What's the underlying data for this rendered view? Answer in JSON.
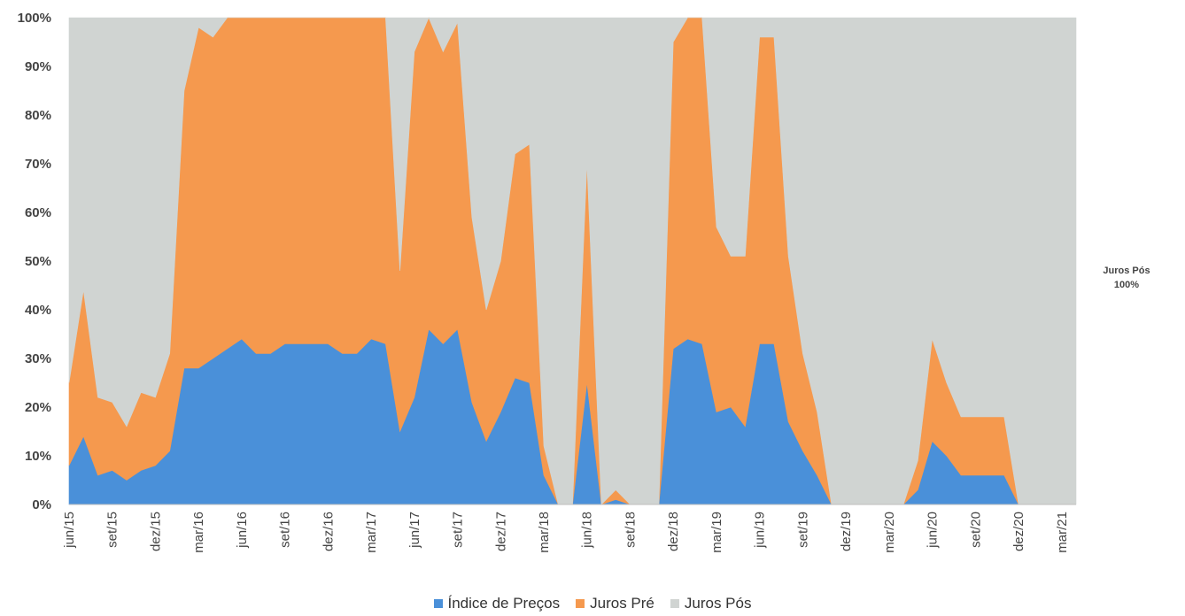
{
  "chart_data": {
    "type": "area",
    "stacked": true,
    "percent": true,
    "title": "",
    "xlabel": "",
    "ylabel": "",
    "ylim": [
      0,
      100
    ],
    "yticks": [
      "0%",
      "10%",
      "20%",
      "30%",
      "40%",
      "50%",
      "60%",
      "70%",
      "80%",
      "90%",
      "100%"
    ],
    "x_tick_labels": [
      "jun/15",
      "set/15",
      "dez/15",
      "mar/16",
      "jun/16",
      "set/16",
      "dez/16",
      "mar/17",
      "jun/17",
      "set/17",
      "dez/17",
      "mar/18",
      "jun/18",
      "set/18",
      "dez/18",
      "mar/19",
      "jun/19",
      "set/19",
      "dez/19",
      "mar/20",
      "jun/20",
      "set/20",
      "dez/20",
      "mar/21"
    ],
    "x": [
      "jun/15",
      "jul/15",
      "ago/15",
      "set/15",
      "out/15",
      "nov/15",
      "dez/15",
      "jan/16",
      "fev/16",
      "mar/16",
      "abr/16",
      "mai/16",
      "jun/16",
      "jul/16",
      "ago/16",
      "set/16",
      "out/16",
      "nov/16",
      "dez/16",
      "jan/17",
      "fev/17",
      "mar/17",
      "abr/17",
      "mai/17",
      "jun/17",
      "jul/17",
      "ago/17",
      "set/17",
      "out/17",
      "nov/17",
      "dez/17",
      "jan/18",
      "fev/18",
      "mar/18",
      "abr/18",
      "mai/18",
      "jun/18",
      "jul/18",
      "ago/18",
      "set/18",
      "out/18",
      "nov/18",
      "dez/18",
      "jan/19",
      "fev/19",
      "mar/19",
      "abr/19",
      "mai/19",
      "jun/19",
      "jul/19",
      "ago/19",
      "set/19",
      "out/19",
      "nov/19",
      "dez/19",
      "jan/20",
      "fev/20",
      "mar/20",
      "abr/20",
      "mai/20",
      "jun/20",
      "jul/20",
      "ago/20",
      "set/20",
      "out/20",
      "nov/20",
      "dez/20",
      "jan/21",
      "fev/21",
      "mar/21",
      "abr/21"
    ],
    "series": [
      {
        "name": "Índice de Preços",
        "color": "#4a90d9",
        "values": [
          8,
          14,
          6,
          7,
          5,
          7,
          8,
          11,
          28,
          28,
          30,
          32,
          34,
          31,
          31,
          33,
          33,
          33,
          33,
          31,
          31,
          34,
          33,
          15,
          22,
          36,
          33,
          36,
          21,
          13,
          19,
          26,
          25,
          6,
          0,
          0,
          25,
          0,
          1,
          0,
          0,
          0,
          32,
          34,
          33,
          19,
          20,
          16,
          33,
          33,
          17,
          11,
          6,
          0,
          0,
          0,
          0,
          0,
          0,
          3,
          13,
          10,
          6,
          6,
          6,
          6,
          0,
          0,
          0,
          0,
          0
        ]
      },
      {
        "name": "Juros Pré",
        "color": "#f5994e",
        "values": [
          17,
          30,
          16,
          14,
          11,
          16,
          14,
          20,
          57,
          70,
          66,
          68,
          66,
          69,
          69,
          67,
          67,
          67,
          67,
          69,
          69,
          66,
          67,
          33,
          71,
          64,
          60,
          63,
          38,
          27,
          31,
          46,
          49,
          6,
          0,
          0,
          45,
          0,
          2,
          0,
          0,
          0,
          63,
          66,
          67,
          38,
          31,
          35,
          63,
          63,
          34,
          20,
          13,
          0,
          0,
          0,
          0,
          0,
          0,
          6,
          21,
          15,
          12,
          12,
          12,
          12,
          0,
          0,
          0,
          0,
          0
        ]
      },
      {
        "name": "Juros Pós",
        "color": "#d0d4d2",
        "values": [
          75,
          56,
          78,
          79,
          84,
          77,
          78,
          69,
          15,
          2,
          4,
          0,
          0,
          0,
          0,
          0,
          0,
          0,
          0,
          0,
          0,
          0,
          0,
          52,
          7,
          0,
          7,
          1,
          41,
          60,
          50,
          28,
          26,
          88,
          100,
          100,
          30,
          100,
          97,
          100,
          100,
          100,
          5,
          0,
          0,
          43,
          49,
          49,
          4,
          4,
          49,
          69,
          81,
          100,
          100,
          100,
          100,
          100,
          100,
          91,
          66,
          75,
          82,
          82,
          82,
          82,
          100,
          100,
          100,
          100,
          100
        ]
      }
    ],
    "side_label": {
      "name": "Juros Pós",
      "value": "100%"
    },
    "legend": [
      "Índice de Preços",
      "Juros Pré",
      "Juros Pós"
    ],
    "legend_position": "bottom",
    "grid": false
  }
}
